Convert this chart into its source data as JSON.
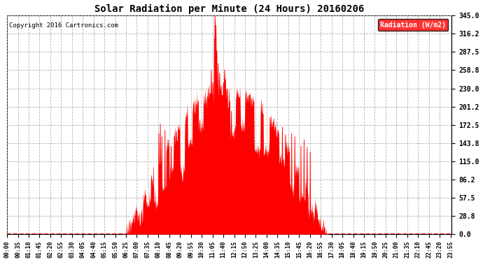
{
  "title": "Solar Radiation per Minute (24 Hours) 20160206",
  "copyright_text": "Copyright 2016 Cartronics.com",
  "legend_label": "Radiation (W/m2)",
  "fill_color": "#FF0000",
  "background_color": "#FFFFFF",
  "grid_color": "#AAAAAA",
  "yticks": [
    0.0,
    28.8,
    57.5,
    86.2,
    115.0,
    143.8,
    172.5,
    201.2,
    230.0,
    258.8,
    287.5,
    316.2,
    345.0
  ],
  "ymax": 345.0,
  "ymin": 0.0,
  "xtick_labels": [
    "00:00",
    "00:35",
    "01:10",
    "01:45",
    "02:20",
    "02:55",
    "03:30",
    "04:05",
    "04:40",
    "05:15",
    "05:50",
    "06:25",
    "07:00",
    "07:35",
    "08:10",
    "08:45",
    "09:20",
    "09:55",
    "10:30",
    "11:05",
    "11:40",
    "12:15",
    "12:50",
    "13:25",
    "14:00",
    "14:35",
    "15:10",
    "15:45",
    "16:20",
    "16:55",
    "17:30",
    "18:05",
    "18:40",
    "19:15",
    "19:50",
    "20:25",
    "21:00",
    "21:35",
    "22:10",
    "22:45",
    "23:20",
    "23:55"
  ],
  "total_minutes": 1440,
  "sunrise_minute": 385,
  "sunset_minute": 1035,
  "peak_minute": 700,
  "peak_value": 345.0,
  "legend_bg": "#FF0000",
  "legend_text_color": "#FFFFFF",
  "dpi": 100,
  "fig_width": 6.9,
  "fig_height": 3.75
}
